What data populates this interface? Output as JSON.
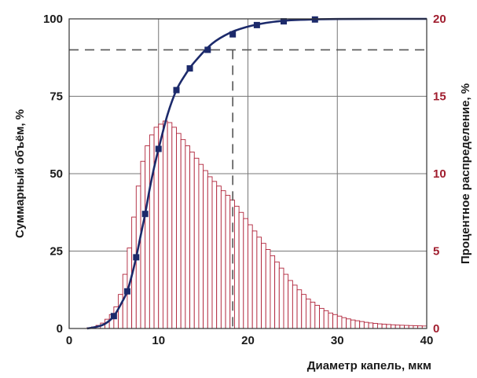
{
  "chart_data": {
    "type": "bar",
    "xlabel": "Диаметр капель, мкм",
    "ylabel_left": "Суммарный объём, %",
    "ylabel_right": "Процентное распределение, %",
    "xlim": [
      0,
      40
    ],
    "ylim_left": [
      0,
      100
    ],
    "ylim_right": [
      0,
      20
    ],
    "x_ticks": [
      "0",
      "10",
      "20",
      "30",
      "40"
    ],
    "y_left_ticks": [
      "0",
      "25",
      "50",
      "75",
      "100"
    ],
    "y_right_ticks": [
      "0",
      "5",
      "10",
      "15",
      "20"
    ],
    "grid": true,
    "colors": {
      "histogram": "#b0243a",
      "cumulative": "#1c2a6b",
      "reference": "#555555",
      "right_axis": "#a01d2e"
    },
    "histogram": {
      "axis": "right",
      "bin_width": 0.5,
      "bin_starts": [
        2.0,
        2.5,
        3.0,
        3.5,
        4.0,
        4.5,
        5.0,
        5.5,
        6.0,
        6.5,
        7.0,
        7.5,
        8.0,
        8.5,
        9.0,
        9.5,
        10.0,
        10.5,
        11.0,
        11.5,
        12.0,
        12.5,
        13.0,
        13.5,
        14.0,
        14.5,
        15.0,
        15.5,
        16.0,
        16.5,
        17.0,
        17.5,
        18.0,
        18.5,
        19.0,
        19.5,
        20.0,
        20.5,
        21.0,
        21.5,
        22.0,
        22.5,
        23.0,
        23.5,
        24.0,
        24.5,
        25.0,
        25.5,
        26.0,
        26.5,
        27.0,
        27.5,
        28.0,
        28.5,
        29.0,
        29.5,
        30.0,
        30.5,
        31.0,
        31.5,
        32.0,
        32.5,
        33.0,
        33.5,
        34.0,
        34.5,
        35.0,
        35.5,
        36.0,
        36.5,
        37.0,
        37.5,
        38.0,
        38.5,
        39.0,
        39.5
      ],
      "values": [
        0.05,
        0.1,
        0.2,
        0.35,
        0.6,
        0.9,
        1.4,
        2.2,
        3.5,
        5.2,
        7.2,
        9.2,
        10.8,
        11.8,
        12.5,
        13.0,
        13.2,
        13.4,
        13.3,
        13.0,
        12.6,
        12.2,
        11.8,
        11.4,
        11.0,
        10.6,
        10.2,
        9.8,
        9.5,
        9.2,
        8.9,
        8.6,
        8.3,
        7.9,
        7.5,
        7.1,
        6.7,
        6.3,
        5.9,
        5.5,
        5.1,
        4.7,
        4.3,
        3.9,
        3.5,
        3.1,
        2.8,
        2.5,
        2.2,
        1.9,
        1.7,
        1.5,
        1.3,
        1.15,
        1.0,
        0.9,
        0.8,
        0.7,
        0.62,
        0.55,
        0.5,
        0.45,
        0.4,
        0.36,
        0.33,
        0.3,
        0.28,
        0.26,
        0.24,
        0.22,
        0.21,
        0.2,
        0.19,
        0.18,
        0.17,
        0.16
      ]
    },
    "cumulative": {
      "axis": "left",
      "x": [
        2,
        3,
        4,
        5,
        6,
        6.5,
        7,
        7.5,
        8,
        8.5,
        9,
        9.5,
        10,
        11,
        12,
        13,
        14,
        16,
        18,
        20,
        22,
        24,
        27,
        30,
        35,
        40
      ],
      "y": [
        0,
        0.5,
        1.5,
        4,
        9,
        12,
        17,
        23,
        30,
        37,
        45,
        52,
        58,
        69,
        77,
        82,
        86,
        92,
        95.5,
        97.5,
        98.7,
        99.4,
        99.8,
        99.95,
        100,
        100
      ],
      "marker_x": [
        5,
        6.5,
        7.5,
        8.5,
        10,
        12,
        13.5,
        15.5,
        18.3,
        21,
        24,
        27.5
      ],
      "marker_y": [
        4,
        12,
        23,
        37,
        58,
        77,
        84,
        90,
        95,
        98,
        99.2,
        99.8
      ]
    },
    "reference_lines": {
      "y": 90,
      "x": 18.3
    }
  }
}
